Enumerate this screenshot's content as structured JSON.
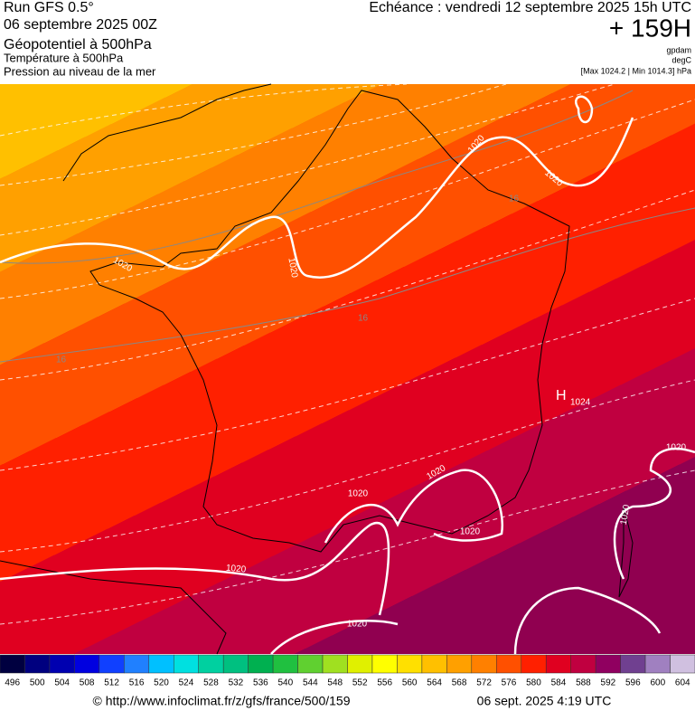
{
  "header": {
    "run": "Run GFS 0.5°",
    "date": "06 septembre 2025 00Z",
    "layers": [
      "Géopotentiel à 500hPa",
      "Température à 500hPa",
      "Pression au niveau de la mer"
    ],
    "forecast": "Echéance : vendredi 12 septembre 2025 15h UTC",
    "hours": "+ 159H",
    "units": [
      "gpdam",
      "degC"
    ],
    "range": "[Max 1024.2 | Min 1014.3] hPa"
  },
  "map": {
    "isobar_labels": [
      "1020",
      "1020",
      "1020",
      "1020",
      "1020",
      "1020",
      "1020",
      "1020",
      "1020",
      "1020",
      "1020"
    ],
    "high": "H",
    "high_value": "1024",
    "isotherm_labels": [
      "16",
      "16",
      "16"
    ]
  },
  "colorbar": {
    "values": [
      496,
      500,
      504,
      508,
      512,
      516,
      520,
      524,
      528,
      532,
      536,
      540,
      544,
      548,
      552,
      556,
      560,
      564,
      568,
      572,
      576,
      580,
      584,
      588,
      592,
      596,
      600,
      604
    ],
    "colors": [
      "#000040",
      "#00007f",
      "#0000b0",
      "#0000e0",
      "#1040ff",
      "#2080ff",
      "#00c0ff",
      "#00e0e0",
      "#00d0a0",
      "#00c080",
      "#00b050",
      "#20c040",
      "#60d030",
      "#a0e020",
      "#e0f000",
      "#ffff00",
      "#ffe000",
      "#ffc000",
      "#ffa000",
      "#ff8000",
      "#ff5000",
      "#ff2000",
      "#e00020",
      "#c00040",
      "#900060",
      "#704090",
      "#a080c0",
      "#d0c0e0"
    ]
  },
  "footer": {
    "url": "© http://www.infoclimat.fr/z/gfs/france/500/159",
    "timestamp": "06 sept. 2025  4:19 UTC"
  }
}
